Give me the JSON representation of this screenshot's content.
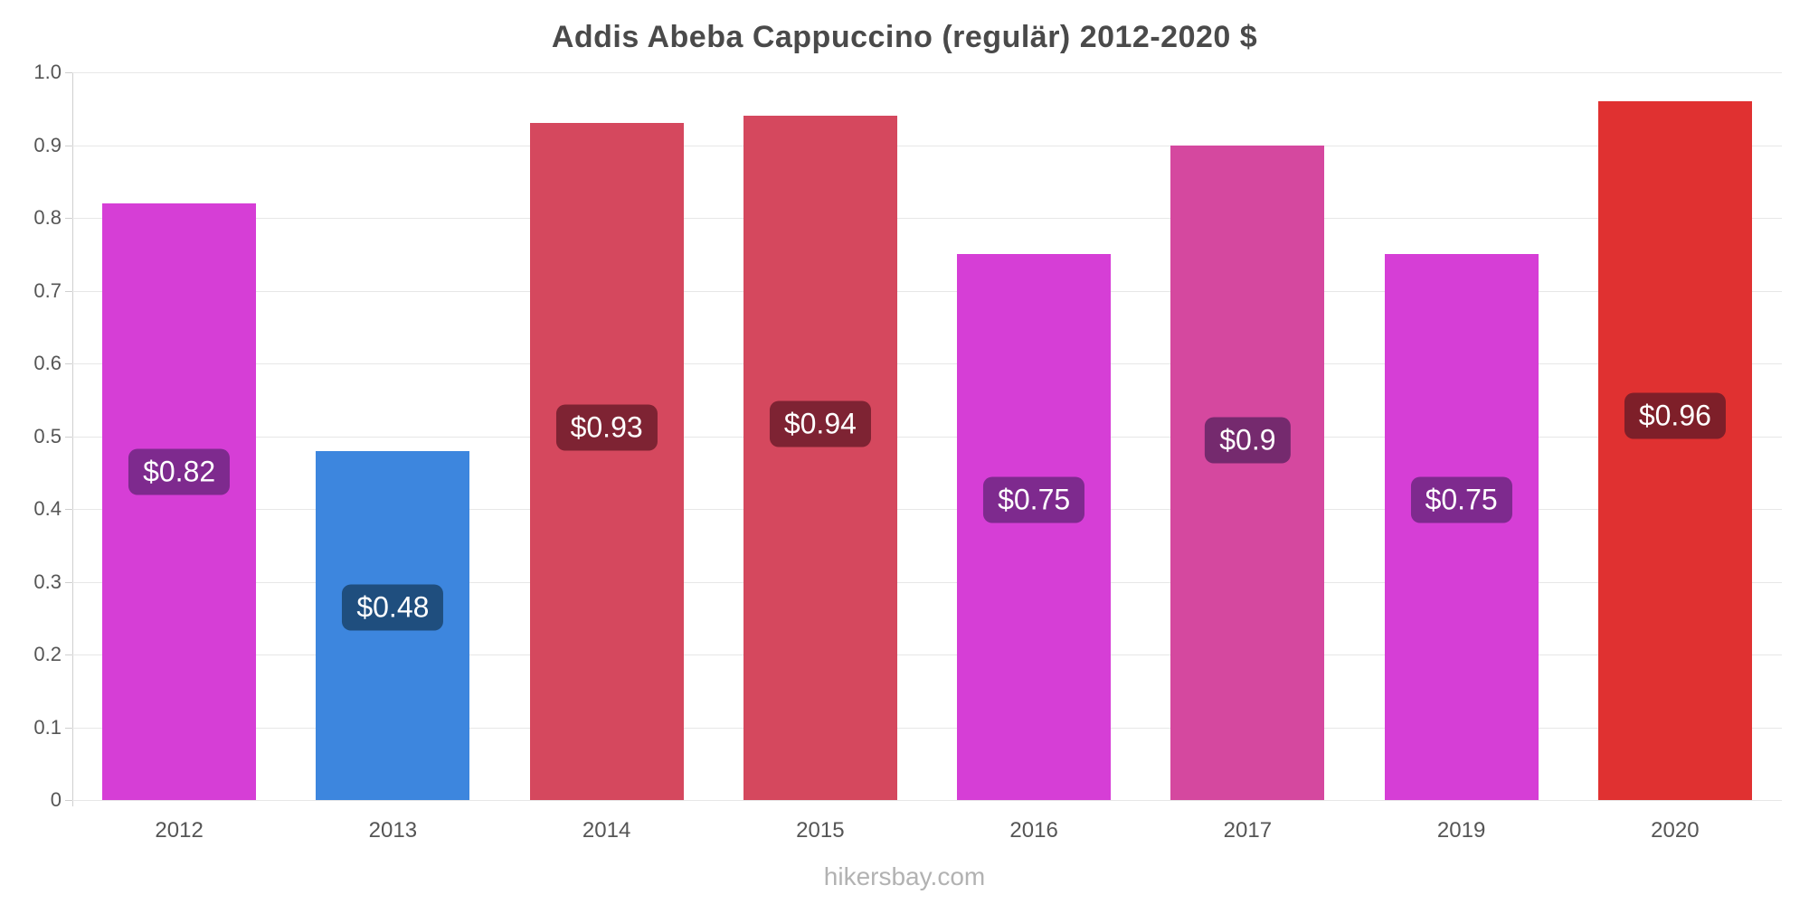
{
  "page": {
    "footer": "hikersbay.com"
  },
  "chart_data": {
    "type": "bar",
    "title": "Addis Abeba Cappuccino (regulär) 2012-2020 $",
    "categories": [
      "2012",
      "2013",
      "2014",
      "2015",
      "2016",
      "2017",
      "2019",
      "2020"
    ],
    "values": [
      0.82,
      0.48,
      0.93,
      0.94,
      0.75,
      0.9,
      0.75,
      0.96
    ],
    "value_labels": [
      "$0.82",
      "$0.48",
      "$0.93",
      "$0.94",
      "$0.75",
      "$0.9",
      "$0.75",
      "$0.96"
    ],
    "bar_colors": [
      "#d63ed6",
      "#3d86de",
      "#d5485e",
      "#d5485e",
      "#d63ed6",
      "#d5489f",
      "#d63ed6",
      "#e03131"
    ],
    "badge_colors": [
      "#7e2a8e",
      "#1f4e7e",
      "#7e2333",
      "#7e2333",
      "#7e2a8e",
      "#752a6e",
      "#7e2a8e",
      "#7e1f29"
    ],
    "xlabel": "",
    "ylabel": "",
    "ylim": [
      0,
      1.0
    ],
    "yticks": [
      0,
      0.1,
      0.2,
      0.3,
      0.4,
      0.5,
      0.6,
      0.7,
      0.8,
      0.9,
      1.0
    ],
    "ytick_labels": [
      "0",
      "0.1",
      "0.2",
      "0.3",
      "0.4",
      "0.5",
      "0.6",
      "0.7",
      "0.8",
      "0.9",
      "1.0"
    ],
    "grid": true,
    "legend": "none"
  }
}
